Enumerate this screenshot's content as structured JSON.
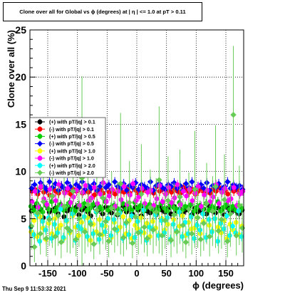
{
  "footer": "Thu Sep  9 11:53:32 2021",
  "chart_data": {
    "type": "scatter",
    "title": "Clone  over all for Global vs ϕ (degrees) at |  η | <= 1.0 at pT > 0.11",
    "xlabel": "ϕ (degrees)",
    "ylabel": "Clone  over all (%)",
    "xlim": [
      -180,
      180
    ],
    "ylim": [
      0,
      25
    ],
    "xticks": [
      -150,
      -100,
      -50,
      0,
      50,
      100,
      150
    ],
    "yticks": [
      0,
      5,
      10,
      15,
      20,
      25
    ],
    "grid": true,
    "legend_position": "left-middle",
    "bins": 72,
    "series": [
      {
        "name": "(+) with pT/|q| > 0.1",
        "color": "#000000",
        "marker": "circle",
        "values": [
          5.8,
          6.2,
          5.4,
          6.0,
          5.1,
          6.4,
          5.7,
          5.9,
          6.1,
          5.5,
          6.3,
          5.2,
          5.8,
          6.0,
          5.6,
          6.2,
          5.4,
          5.9,
          6.1,
          5.7,
          5.3,
          6.4,
          5.8,
          6.0,
          5.5,
          6.2,
          5.9,
          5.6,
          6.1,
          5.4,
          5.8,
          6.3,
          5.7,
          6.0,
          5.5,
          6.2,
          5.9,
          5.3,
          6.1,
          5.8,
          5.6,
          6.0,
          5.4,
          6.2,
          5.9,
          5.7,
          6.1,
          5.5,
          6.3,
          5.8,
          6.0,
          5.6,
          5.9,
          6.2,
          5.4,
          6.1,
          5.7,
          5.9,
          6.0,
          5.5,
          6.3,
          5.8,
          5.6,
          6.1,
          5.9,
          5.4,
          6.2,
          5.7,
          6.0,
          5.8,
          5.5,
          5.9
        ]
      },
      {
        "name": "(-) with pT/|q| > 0.1",
        "color": "#ff0000",
        "marker": "circle",
        "values": [
          7.9,
          8.1,
          7.6,
          8.3,
          7.8,
          8.0,
          7.5,
          8.2,
          7.9,
          7.7,
          8.4,
          7.8,
          8.0,
          7.6,
          8.1,
          7.9,
          8.3,
          7.7,
          8.0,
          7.8,
          8.2,
          7.5,
          7.9,
          8.1,
          7.7,
          8.3,
          7.8,
          8.0,
          7.6,
          8.2,
          7.9,
          7.8,
          8.1,
          7.7,
          8.3,
          8.0,
          7.6,
          7.9,
          8.2,
          7.8,
          8.0,
          7.7,
          8.4,
          7.9,
          8.1,
          7.6,
          8.0,
          7.8,
          8.2,
          7.9,
          7.7,
          8.3,
          8.0,
          7.8,
          8.1,
          7.6,
          7.9,
          8.2,
          7.8,
          8.0,
          7.7,
          8.1,
          7.9,
          8.3,
          7.8,
          8.0,
          7.6,
          8.2,
          7.9,
          8.1,
          7.7,
          8.0
        ]
      },
      {
        "name": "(+) with pT/|q| > 0.5",
        "color": "#00cc00",
        "marker": "circle",
        "values": [
          6.3,
          5.9,
          6.6,
          6.1,
          5.7,
          6.4,
          6.0,
          6.8,
          5.8,
          6.2,
          6.5,
          5.9,
          6.3,
          6.7,
          6.0,
          5.8,
          6.4,
          6.2,
          6.6,
          5.9,
          6.1,
          6.5,
          5.7,
          6.3,
          6.0,
          6.8,
          5.9,
          6.2,
          6.4,
          6.1,
          5.8,
          6.6,
          6.0,
          6.3,
          5.9,
          6.7,
          6.1,
          6.4,
          5.8,
          6.2,
          6.5,
          6.0,
          6.3,
          5.9,
          6.6,
          6.1,
          5.8,
          6.4,
          6.2,
          6.0,
          6.7,
          5.9,
          6.3,
          6.1,
          6.5,
          5.8,
          6.2,
          6.4,
          6.0,
          6.6,
          5.9,
          6.3,
          6.1,
          6.8,
          5.8,
          6.2,
          6.5,
          6.0,
          6.3,
          5.9,
          6.4,
          6.1
        ]
      },
      {
        "name": "(-) with pT/|q| > 0.5",
        "color": "#0000ff",
        "marker": "diamond",
        "values": [
          8.2,
          8.6,
          7.9,
          8.8,
          8.4,
          8.1,
          8.9,
          8.3,
          8.7,
          8.0,
          8.5,
          8.2,
          8.8,
          8.4,
          7.9,
          8.6,
          8.3,
          8.9,
          8.1,
          8.5,
          8.2,
          8.7,
          8.0,
          8.4,
          8.8,
          8.3,
          8.6,
          8.1,
          8.9,
          8.4,
          8.2,
          8.7,
          8.0,
          8.5,
          8.3,
          8.8,
          8.1,
          8.6,
          8.4,
          8.2,
          8.9,
          8.0,
          8.5,
          8.7,
          8.3,
          8.1,
          8.6,
          8.4,
          8.8,
          8.2,
          8.5,
          8.0,
          8.7,
          8.3,
          8.9,
          8.1,
          8.4,
          8.6,
          8.2,
          8.8,
          8.0,
          8.5,
          8.3,
          8.7,
          8.1,
          8.4,
          8.9,
          8.2,
          8.6,
          8.3,
          8.5,
          8.1
        ]
      },
      {
        "name": "(+) with pT/|q| > 1.0",
        "color": "#ffff00",
        "marker": "circle",
        "values": [
          3.6,
          4.8,
          3.1,
          5.2,
          4.0,
          2.8,
          4.5,
          3.4,
          5.0,
          3.9,
          4.3,
          2.9,
          4.7,
          3.5,
          5.3,
          4.1,
          3.2,
          4.6,
          3.8,
          5.1,
          2.7,
          4.4,
          3.6,
          4.9,
          3.3,
          4.2,
          5.0,
          3.0,
          4.6,
          3.7,
          4.1,
          5.2,
          3.4,
          4.8,
          2.9,
          4.3,
          3.9,
          5.1,
          3.5,
          4.5,
          3.1,
          4.7,
          4.0,
          3.3,
          5.0,
          3.8,
          4.4,
          2.8,
          4.9,
          3.6,
          4.2,
          5.3,
          3.2,
          4.6,
          3.9,
          4.0,
          5.1,
          3.4,
          4.7,
          3.0,
          4.3,
          3.7,
          5.0,
          4.1,
          3.5,
          4.8,
          2.9,
          4.4,
          3.8,
          4.6,
          3.3,
          4.2
        ]
      },
      {
        "name": "(-) with pT/|q| > 1.0",
        "color": "#ff00ff",
        "marker": "circle",
        "values": [
          6.8,
          7.9,
          6.2,
          8.4,
          7.1,
          6.5,
          8.1,
          7.4,
          6.9,
          8.6,
          6.3,
          7.7,
          8.2,
          6.7,
          7.3,
          8.0,
          6.4,
          7.8,
          8.5,
          6.9,
          7.2,
          8.3,
          6.6,
          7.6,
          8.8,
          6.8,
          7.4,
          8.1,
          6.3,
          7.9,
          7.0,
          8.4,
          6.5,
          7.5,
          8.7,
          6.9,
          7.3,
          8.2,
          6.6,
          7.8,
          8.0,
          6.4,
          7.1,
          8.5,
          6.8,
          7.6,
          8.3,
          6.7,
          7.2,
          8.6,
          6.5,
          7.9,
          7.4,
          8.1,
          6.9,
          7.7,
          8.4,
          6.3,
          7.5,
          8.0,
          6.8,
          7.3,
          8.6,
          6.6,
          7.8,
          8.2,
          6.9,
          7.1,
          8.3,
          6.4,
          7.6,
          7.9
        ]
      },
      {
        "name": "(+) with pT/|q| > 2.0",
        "color": "#00ffff",
        "marker": "circle",
        "values": [
          4.1,
          3.3,
          5.4,
          2.6,
          4.7,
          3.8,
          5.1,
          2.9,
          4.4,
          3.5,
          6.0,
          3.0,
          4.8,
          3.7,
          5.5,
          2.7,
          4.2,
          3.9,
          5.2,
          3.1,
          4.6,
          3.4,
          5.8,
          2.8,
          4.3,
          3.6,
          5.0,
          3.2,
          4.9,
          3.8,
          5.6,
          2.9,
          4.5,
          3.3,
          5.3,
          3.0,
          4.7,
          3.6,
          5.9,
          2.7,
          4.1,
          3.9,
          5.4,
          3.2,
          4.8,
          3.5,
          5.1,
          2.8,
          4.4,
          3.7,
          5.7,
          3.1,
          4.6,
          3.4,
          5.2,
          2.9,
          4.3,
          3.8,
          5.5,
          3.0,
          4.9,
          3.6,
          5.0,
          2.6,
          4.5,
          3.9,
          5.3,
          3.2,
          4.2,
          3.5,
          5.8,
          3.1
        ]
      },
      {
        "name": "(-) with pT/|q| > 2.0",
        "color": "#66cc55",
        "marker": "diamond",
        "values": [
          4.2,
          2.0,
          5.6,
          3.4,
          6.8,
          2.9,
          4.9,
          7.4,
          3.1,
          5.3,
          2.5,
          6.3,
          4.0,
          3.7,
          7.9,
          2.8,
          5.0,
          9.3,
          3.6,
          6.5,
          4.4,
          2.3,
          5.9,
          3.3,
          7.2,
          4.7,
          2.6,
          6.1,
          3.9,
          5.5,
          8.7,
          3.0,
          4.6,
          6.7,
          2.4,
          5.2,
          3.5,
          7.6,
          4.1,
          2.9,
          6.2,
          3.8,
          5.7,
          9.1,
          3.2,
          4.8,
          6.9,
          2.7,
          5.4,
          3.6,
          7.3,
          4.3,
          2.5,
          6.0,
          3.4,
          8.1,
          5.1,
          2.8,
          4.5,
          6.6,
          3.1,
          5.8,
          8.4,
          3.7,
          4.9,
          7.0,
          2.6,
          5.5,
          16.0,
          3.2,
          6.4,
          4.0
        ]
      }
    ],
    "errors": {
      "(-) with pT/|q| > 2.0": [
        2.5,
        1.6,
        3.0,
        2.2,
        4.1,
        1.9,
        2.8,
        5.5,
        2.0,
        3.2,
        1.7,
        3.8,
        2.6,
        2.4,
        6.0,
        1.8,
        3.0,
        10.8,
        2.3,
        4.5,
        2.9,
        1.6,
        3.6,
        2.1,
        4.9,
        3.0,
        1.7,
        3.9,
        2.5,
        3.4,
        7.5,
        2.0,
        2.9,
        4.4,
        1.6,
        3.3,
        2.3,
        5.3,
        2.7,
        1.9,
        4.0,
        2.5,
        3.6,
        7.8,
        2.1,
        3.0,
        4.7,
        1.8,
        3.4,
        2.3,
        5.0,
        2.8,
        1.7,
        3.9,
        2.2,
        6.2,
        3.2,
        1.8,
        2.9,
        4.3,
        2.1,
        3.7,
        6.5,
        2.4,
        3.1,
        4.8,
        1.7,
        3.5,
        7.3,
        2.1,
        4.2,
        2.6
      ]
    }
  }
}
